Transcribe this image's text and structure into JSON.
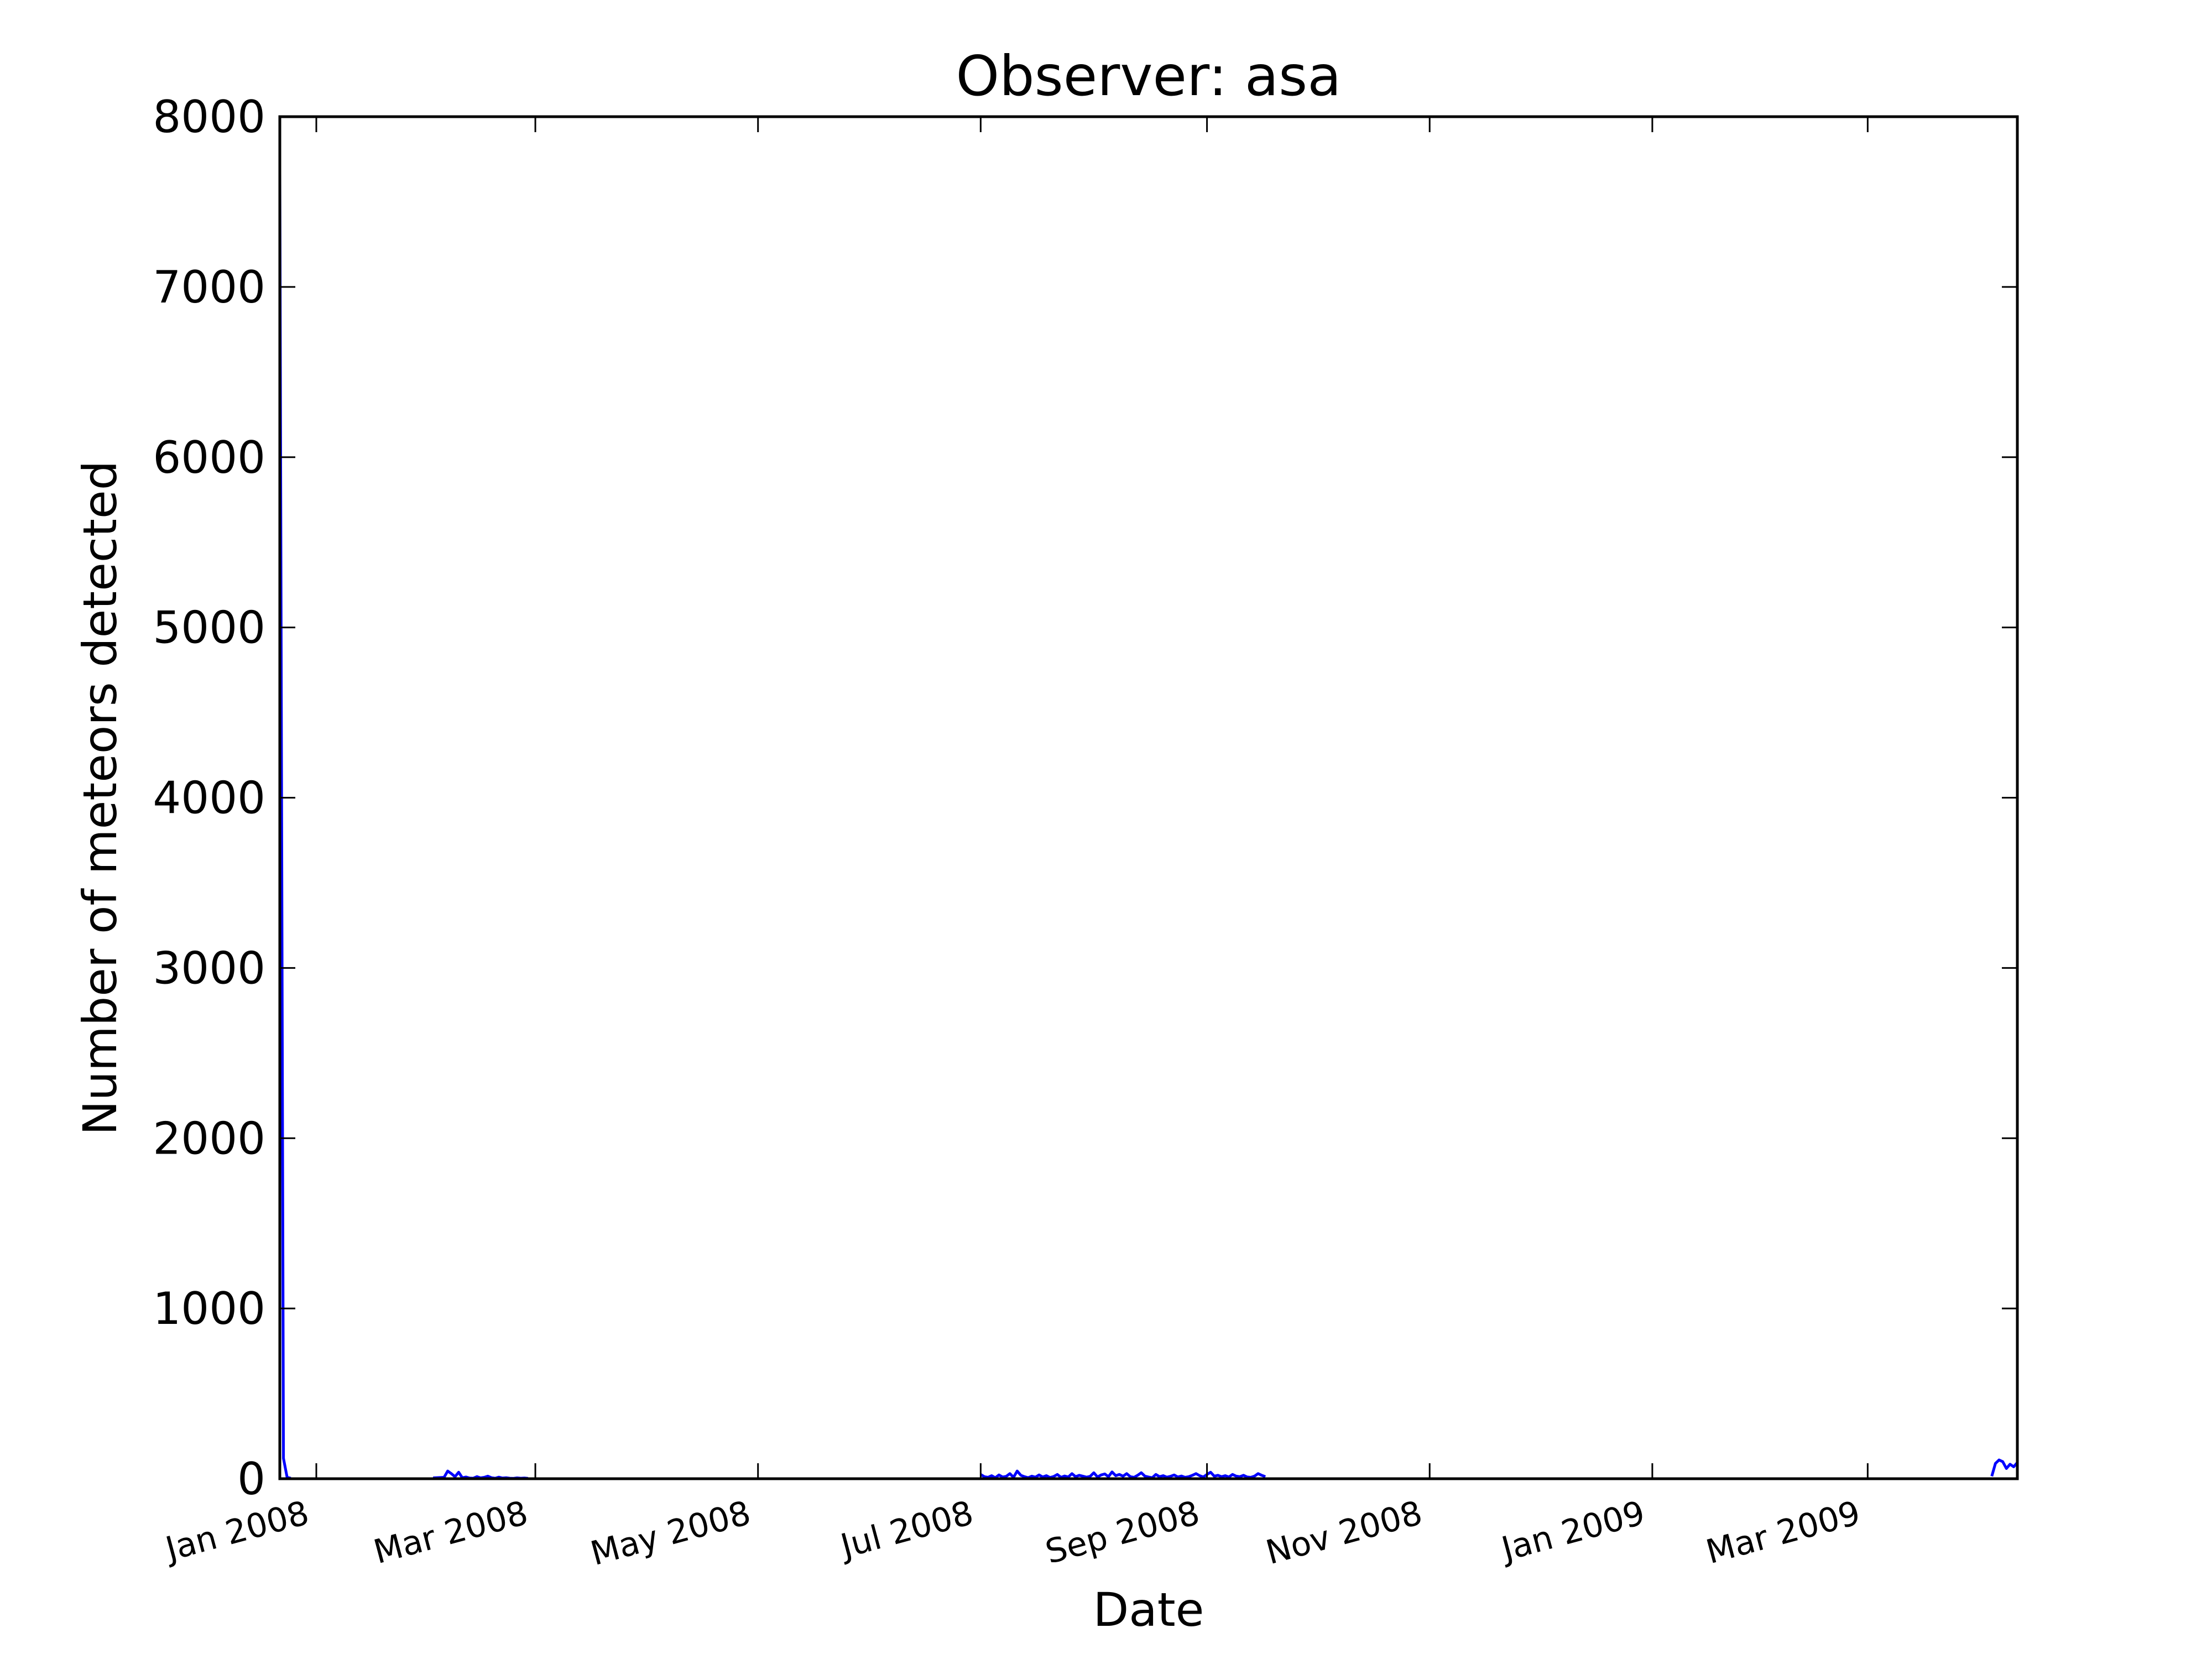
{
  "chart_data": {
    "type": "line",
    "title": "Observer: asa",
    "xlabel": "Date",
    "ylabel": "Number of meteors detected",
    "xlim": [
      "2007-12-22",
      "2009-04-11"
    ],
    "ylim": [
      0,
      8000
    ],
    "yticks": [
      0,
      1000,
      2000,
      3000,
      4000,
      5000,
      6000,
      7000,
      8000
    ],
    "xticks": [
      {
        "date": "2008-01-01",
        "label": "Jan 2008"
      },
      {
        "date": "2008-03-01",
        "label": "Mar 2008"
      },
      {
        "date": "2008-05-01",
        "label": "May 2008"
      },
      {
        "date": "2008-07-01",
        "label": "Jul 2008"
      },
      {
        "date": "2008-09-01",
        "label": "Sep 2008"
      },
      {
        "date": "2008-11-01",
        "label": "Nov 2008"
      },
      {
        "date": "2009-01-01",
        "label": "Jan 2009"
      },
      {
        "date": "2009-03-01",
        "label": "Mar 2009"
      }
    ],
    "grid": false,
    "legend": null,
    "series_color": "#0000ff",
    "series": [
      {
        "x": [
          "2007-12-22",
          "2007-12-23",
          "2007-12-24",
          "2007-12-25",
          "2008-02-02",
          "2008-02-05",
          "2008-02-06",
          "2008-02-07",
          "2008-02-08",
          "2008-02-09",
          "2008-02-10",
          "2008-02-11",
          "2008-02-12",
          "2008-02-13",
          "2008-02-14",
          "2008-02-15",
          "2008-02-16",
          "2008-02-17",
          "2008-02-18",
          "2008-02-19",
          "2008-02-20",
          "2008-02-21",
          "2008-02-22",
          "2008-02-23",
          "2008-02-24",
          "2008-02-25",
          "2008-02-26",
          "2008-02-27",
          "2008-02-28",
          "2008-07-01",
          "2008-07-02",
          "2008-07-03",
          "2008-07-04",
          "2008-07-05",
          "2008-07-06",
          "2008-07-07",
          "2008-07-08",
          "2008-07-09",
          "2008-07-10",
          "2008-07-11",
          "2008-07-12",
          "2008-07-13",
          "2008-07-14",
          "2008-07-15",
          "2008-07-16",
          "2008-07-17",
          "2008-07-18",
          "2008-07-19",
          "2008-07-20",
          "2008-07-21",
          "2008-07-22",
          "2008-07-23",
          "2008-07-24",
          "2008-07-25",
          "2008-07-26",
          "2008-07-27",
          "2008-07-28",
          "2008-07-29",
          "2008-07-30",
          "2008-07-31",
          "2008-08-01",
          "2008-08-02",
          "2008-08-03",
          "2008-08-04",
          "2008-08-05",
          "2008-08-06",
          "2008-08-07",
          "2008-08-08",
          "2008-08-09",
          "2008-08-10",
          "2008-08-11",
          "2008-08-12",
          "2008-08-13",
          "2008-08-14",
          "2008-08-15",
          "2008-08-16",
          "2008-08-17",
          "2008-08-18",
          "2008-08-19",
          "2008-08-20",
          "2008-08-21",
          "2008-08-22",
          "2008-08-23",
          "2008-08-24",
          "2008-08-25",
          "2008-08-26",
          "2008-08-27",
          "2008-08-28",
          "2008-08-29",
          "2008-08-30",
          "2008-08-31",
          "2008-09-01",
          "2008-09-02",
          "2008-09-03",
          "2008-09-04",
          "2008-09-05",
          "2008-09-06",
          "2008-09-07",
          "2008-09-08",
          "2008-09-09",
          "2008-09-10",
          "2008-09-11",
          "2008-09-12",
          "2008-09-13",
          "2008-09-14",
          "2008-09-15",
          "2008-09-16",
          "2008-09-17",
          "2009-04-04",
          "2009-04-05",
          "2009-04-06",
          "2009-04-07",
          "2009-04-08",
          "2009-04-09",
          "2009-04-10",
          "2009-04-11"
        ],
        "y": [
          7680,
          120,
          8,
          3,
          5,
          8,
          45,
          30,
          12,
          38,
          6,
          10,
          4,
          3,
          12,
          5,
          8,
          15,
          6,
          3,
          9,
          4,
          6,
          3,
          2,
          5,
          3,
          4,
          2,
          25,
          12,
          8,
          18,
          6,
          22,
          10,
          14,
          30,
          8,
          45,
          20,
          12,
          6,
          15,
          9,
          22,
          10,
          18,
          7,
          13,
          25,
          8,
          16,
          10,
          30,
          12,
          20,
          15,
          9,
          14,
          35,
          10,
          22,
          28,
          12,
          40,
          18,
          25,
          15,
          30,
          12,
          8,
          20,
          35,
          15,
          10,
          6,
          25,
          12,
          18,
          9,
          14,
          22,
          10,
          16,
          8,
          12,
          20,
          30,
          18,
          10,
          25,
          38,
          15,
          20,
          12,
          18,
          10,
          25,
          15,
          12,
          20,
          10,
          8,
          15,
          30,
          20,
          12,
          15,
          90,
          110,
          100,
          60,
          85,
          70,
          95
        ]
      }
    ]
  }
}
